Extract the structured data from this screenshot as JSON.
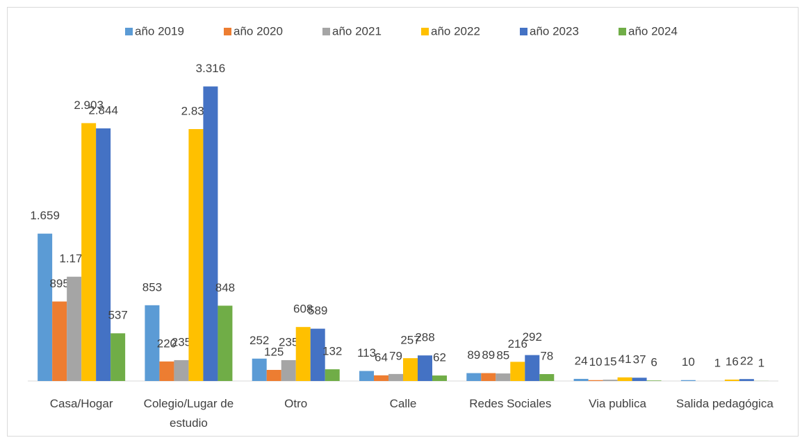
{
  "chart_data": {
    "type": "bar",
    "categories": [
      "Casa/Hogar",
      "Colegio/Lugar de estudio",
      "Otro",
      "Calle",
      "Redes Sociales",
      "Via publica",
      "Salida pedagógica"
    ],
    "series": [
      {
        "name": "año 2019",
        "color": "#5b9bd5",
        "values": [
          1659,
          853,
          252,
          113,
          89,
          24,
          10
        ],
        "value_labels": [
          "1.659",
          "853",
          "252",
          "113",
          "89",
          "24",
          "10"
        ]
      },
      {
        "name": "año 2020",
        "color": "#ed7d31",
        "values": [
          895,
          220,
          125,
          64,
          89,
          10,
          null
        ],
        "value_labels": [
          "895",
          "220",
          "125",
          "64",
          "89",
          "10",
          null
        ]
      },
      {
        "name": "año 2021",
        "color": "#a5a5a5",
        "values": [
          1174,
          235,
          235,
          79,
          85,
          15,
          1
        ],
        "value_labels": [
          "1.174",
          "235",
          "235",
          "79",
          "85",
          "15",
          "1"
        ]
      },
      {
        "name": "año 2022",
        "color": "#ffc000",
        "values": [
          2903,
          2836,
          608,
          257,
          216,
          41,
          16
        ],
        "value_labels": [
          "2.903",
          "2.836",
          "608",
          "257",
          "216",
          "41",
          "16"
        ]
      },
      {
        "name": "año 2023",
        "color": "#4472c4",
        "values": [
          2844,
          3316,
          589,
          288,
          292,
          37,
          22
        ],
        "value_labels": [
          "2.844",
          "3.316",
          "589",
          "288",
          "292",
          "37",
          "22"
        ]
      },
      {
        "name": "año 2024",
        "color": "#70ad47",
        "values": [
          537,
          848,
          132,
          62,
          78,
          6,
          1
        ],
        "value_labels": [
          "537",
          "848",
          "132",
          "62",
          "78",
          "6",
          "1"
        ]
      }
    ],
    "legend": "top"
  }
}
